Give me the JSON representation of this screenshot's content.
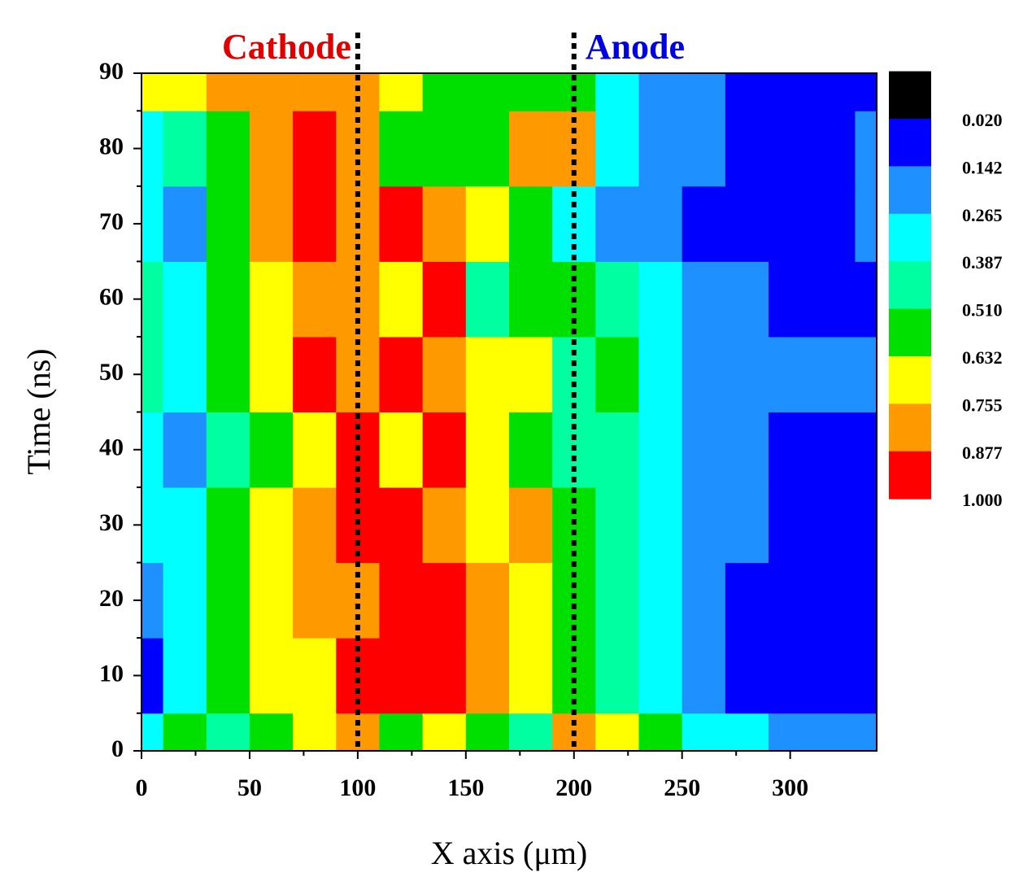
{
  "chart_data": {
    "type": "contour",
    "xlabel": "X axis (μm)",
    "ylabel": "Time (ns)",
    "xlim": [
      0,
      340
    ],
    "xticks": [
      0,
      50,
      100,
      150,
      200,
      250,
      300
    ],
    "ylim": [
      0,
      90
    ],
    "yticks": [
      0,
      10,
      20,
      30,
      40,
      50,
      60,
      70,
      80,
      90
    ],
    "x": [
      0,
      20,
      40,
      60,
      80,
      100,
      120,
      140,
      160,
      180,
      200,
      220,
      240,
      260,
      280,
      300,
      320,
      340
    ],
    "y": [
      0,
      10,
      20,
      30,
      40,
      50,
      60,
      70,
      80,
      90
    ],
    "z": [
      [
        0.33,
        0.57,
        0.45,
        0.57,
        0.69,
        0.82,
        0.57,
        0.69,
        0.57,
        0.45,
        0.82,
        0.69,
        0.57,
        0.33,
        0.33,
        0.2,
        0.2,
        0.2
      ],
      [
        0.08,
        0.33,
        0.57,
        0.69,
        0.69,
        0.94,
        0.94,
        0.94,
        0.82,
        0.69,
        0.57,
        0.45,
        0.33,
        0.2,
        0.08,
        0.08,
        0.08,
        0.08
      ],
      [
        0.2,
        0.33,
        0.57,
        0.69,
        0.82,
        0.82,
        0.94,
        0.94,
        0.82,
        0.69,
        0.57,
        0.45,
        0.33,
        0.2,
        0.08,
        0.08,
        0.08,
        0.08
      ],
      [
        0.33,
        0.33,
        0.57,
        0.69,
        0.82,
        0.94,
        0.94,
        0.82,
        0.69,
        0.82,
        0.57,
        0.45,
        0.33,
        0.2,
        0.2,
        0.08,
        0.08,
        0.08
      ],
      [
        0.33,
        0.2,
        0.45,
        0.57,
        0.69,
        0.94,
        0.69,
        0.94,
        0.69,
        0.57,
        0.45,
        0.45,
        0.33,
        0.2,
        0.2,
        0.08,
        0.08,
        0.08
      ],
      [
        0.45,
        0.33,
        0.57,
        0.69,
        0.94,
        0.82,
        0.94,
        0.82,
        0.69,
        0.69,
        0.45,
        0.57,
        0.33,
        0.2,
        0.2,
        0.2,
        0.2,
        0.2
      ],
      [
        0.45,
        0.33,
        0.57,
        0.69,
        0.82,
        0.82,
        0.69,
        0.94,
        0.45,
        0.57,
        0.57,
        0.45,
        0.33,
        0.2,
        0.2,
        0.08,
        0.08,
        0.08
      ],
      [
        0.33,
        0.2,
        0.57,
        0.82,
        0.94,
        0.82,
        0.94,
        0.82,
        0.69,
        0.57,
        0.33,
        0.2,
        0.2,
        0.08,
        0.08,
        0.08,
        0.08,
        0.2
      ],
      [
        0.33,
        0.45,
        0.57,
        0.82,
        0.94,
        0.82,
        0.57,
        0.57,
        0.57,
        0.82,
        0.82,
        0.33,
        0.2,
        0.2,
        0.08,
        0.08,
        0.08,
        0.2
      ],
      [
        0.69,
        0.69,
        0.82,
        0.82,
        0.82,
        0.82,
        0.69,
        0.57,
        0.57,
        0.57,
        0.57,
        0.33,
        0.2,
        0.2,
        0.08,
        0.08,
        0.08,
        0.08
      ]
    ],
    "zticks": [
      {
        "value": 0.02,
        "label": "0.020"
      },
      0.142,
      0.265,
      0.387,
      {
        "value": 0.51,
        "label": "0.510"
      },
      0.632,
      0.755,
      0.877,
      {
        "value": 1,
        "label": "1.000"
      }
    ],
    "colors": [
      "#000000",
      "#0000ff",
      "#1e90ff",
      "#00ffff",
      "#00ffa0",
      "#00e000",
      "#ffff00",
      "#ff9900",
      "#ff0000"
    ],
    "markers": [
      {
        "x": 100,
        "label": "Cathode",
        "color": "#e00000"
      },
      {
        "x": 200,
        "label": "Anode",
        "color": "#0000e0"
      }
    ]
  }
}
